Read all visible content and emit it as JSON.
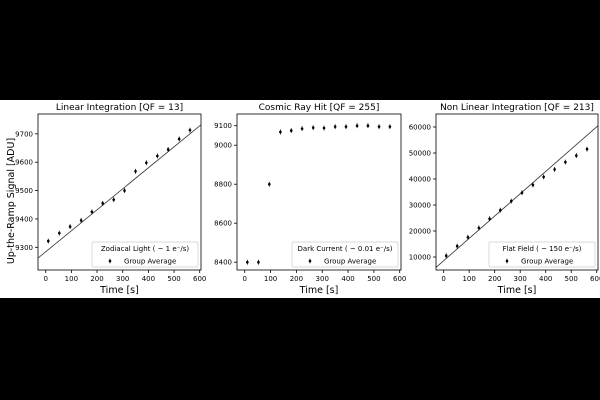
{
  "figure": {
    "ylabel": "Up-the-Ramp Signal [ADU]"
  },
  "chart_data": [
    {
      "type": "scatter",
      "title": "Linear Integration [QF = 13]",
      "xlabel": "Time [s]",
      "ylabel": "Up-the-Ramp Signal [ADU]",
      "xlim": [
        -30,
        605
      ],
      "ylim": [
        9220,
        9770
      ],
      "xticks": [
        0,
        100,
        200,
        300,
        400,
        500,
        600
      ],
      "yticks": [
        9300,
        9400,
        9500,
        9600,
        9700
      ],
      "fit_line": {
        "x": [
          -30,
          605
        ],
        "y": [
          9262,
          9732
        ]
      },
      "legend_title": "Zodiacal Light ( ~ 1 e⁻/s)",
      "legend_location": "lower-right",
      "series": [
        {
          "name": "Group Average",
          "x": [
            10,
            53,
            95,
            138,
            180,
            222,
            265,
            307,
            350,
            392,
            435,
            477,
            520,
            562
          ],
          "y": [
            9322,
            9350,
            9373,
            9395,
            9425,
            9455,
            9468,
            9500,
            9568,
            9598,
            9622,
            9645,
            9682,
            9713
          ]
        }
      ]
    },
    {
      "type": "scatter",
      "title": "Cosmic Ray Hit [QF = 255]",
      "xlabel": "Time [s]",
      "xlim": [
        -30,
        605
      ],
      "ylim": [
        8360,
        9160
      ],
      "xticks": [
        0,
        100,
        200,
        300,
        400,
        500,
        600
      ],
      "yticks": [
        8400,
        8600,
        8800,
        9000,
        9100
      ],
      "legend_title": "Dark Current ( ~ 0.01 e⁻/s)",
      "legend_location": "lower-right",
      "series": [
        {
          "name": "Group Average",
          "x": [
            10,
            53,
            95,
            138,
            180,
            222,
            265,
            307,
            350,
            392,
            435,
            477,
            520,
            562
          ],
          "y": [
            8400,
            8400,
            8800,
            9068,
            9075,
            9085,
            9090,
            9088,
            9095,
            9095,
            9100,
            9100,
            9095,
            9095
          ]
        }
      ]
    },
    {
      "type": "scatter",
      "title": "Non Linear Integration [QF = 213]",
      "xlabel": "Time [s]",
      "xlim": [
        -30,
        605
      ],
      "ylim": [
        5000,
        65000
      ],
      "xticks": [
        0,
        100,
        200,
        300,
        400,
        500,
        600
      ],
      "yticks": [
        10000,
        20000,
        30000,
        40000,
        50000,
        60000
      ],
      "fit_line": {
        "x": [
          -30,
          605
        ],
        "y": [
          6000,
          60500
        ]
      },
      "legend_title": "Flat Field ( ~ 150 e⁻/s)",
      "legend_location": "lower-right",
      "series": [
        {
          "name": "Group Average",
          "x": [
            10,
            53,
            95,
            138,
            180,
            222,
            265,
            307,
            350,
            392,
            435,
            477,
            520,
            562
          ],
          "y": [
            10500,
            14200,
            17600,
            21200,
            24700,
            28000,
            31500,
            34700,
            37700,
            40800,
            43700,
            46500,
            49000,
            51500
          ]
        }
      ]
    }
  ]
}
